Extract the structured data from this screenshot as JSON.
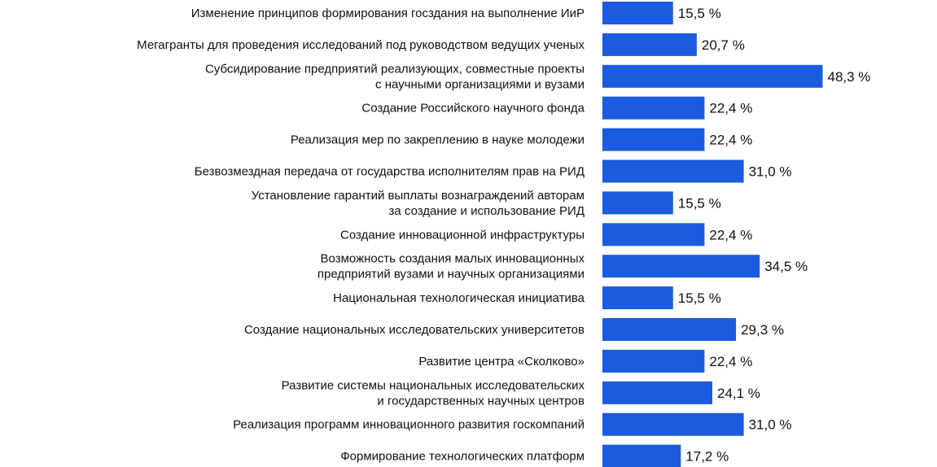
{
  "chart_data": {
    "type": "bar",
    "orientation": "horizontal",
    "title": "",
    "xlabel": "",
    "ylabel": "",
    "grid": false,
    "legend": "none",
    "bar_color": "#1a5be0",
    "categories": [
      "Изменение принципов формирования госздания на выполнение ИиР",
      "Мегагранты для проведения исследований под руководством ведущих ученых",
      "Субсидирование предприятий  реализующих, совместные проекты\nс научными организациями и вузами",
      "Создание Российского научного фонда",
      "Реализация мер по закреплению в науке молодежи",
      "Безвозмездная передача от государства исполнителям прав на РИД",
      "Установление гарантий выплаты вознаграждений авторам\nза создание и использование РИД",
      "Создание инновационной инфраструктуры",
      "Возможность создания малых инновационных\nпредприятий вузами и научных организациями",
      "Национальная технологическая инициатива",
      "Создание национальных исследовательских университетов",
      "Развитие центра «Сколково»",
      "Развитие системы национальных исследовательских\nи государственных научных центров",
      "Реализация программ инновационного развития госкомпаний",
      "Формирование технологических платформ"
    ],
    "values": [
      15.5,
      20.7,
      48.3,
      22.4,
      22.4,
      31.0,
      15.5,
      22.4,
      34.5,
      15.5,
      29.3,
      22.4,
      24.1,
      31.0,
      17.2
    ],
    "value_labels": [
      "15,5 %",
      "20,7 %",
      "48,3 %",
      "22,4 %",
      "22,4 %",
      "31,0 %",
      "15,5 %",
      "22,4 %",
      "34,5 %",
      "15,5 %",
      "29,3 %",
      "22,4 %",
      "24,1 %",
      "31,0 %",
      "17,2 %"
    ]
  }
}
